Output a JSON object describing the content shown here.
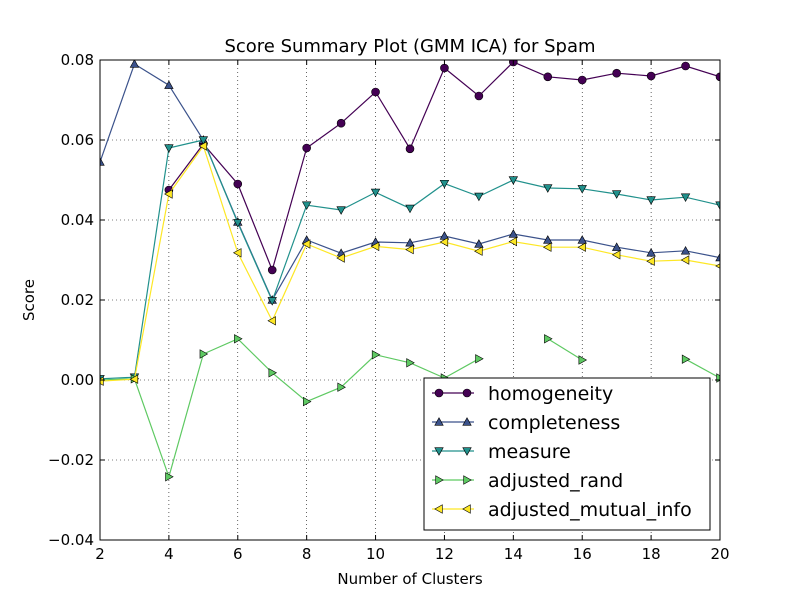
{
  "chart_data": {
    "type": "line",
    "title": "Score Summary Plot (GMM ICA) for Spam",
    "xlabel": "Number of Clusters",
    "ylabel": "Score",
    "xlim": [
      2,
      20
    ],
    "ylim": [
      -0.04,
      0.08
    ],
    "xticks": [
      "2",
      "4",
      "6",
      "8",
      "10",
      "12",
      "14",
      "16",
      "18",
      "20"
    ],
    "yticks": [
      "−0.04",
      "−0.02",
      "0.00",
      "0.02",
      "0.04",
      "0.06",
      "0.08"
    ],
    "grid": true,
    "legend_position": "lower-right",
    "x": [
      2,
      3,
      4,
      5,
      6,
      7,
      8,
      9,
      10,
      11,
      12,
      13,
      14,
      15,
      16,
      17,
      18,
      19,
      20
    ],
    "series": [
      {
        "name": "homogeneity",
        "color": "#440154",
        "marker": "circle",
        "values": [
          null,
          null,
          0.0475,
          0.059,
          0.049,
          0.0275,
          0.058,
          0.0642,
          0.072,
          0.0578,
          0.078,
          0.071,
          0.0795,
          0.0758,
          0.075,
          0.0767,
          0.076,
          0.0785,
          0.0758
        ]
      },
      {
        "name": "completeness",
        "color": "#3b528b",
        "marker": "triangle-up",
        "values": [
          0.0545,
          0.079,
          0.0737,
          0.06,
          0.0395,
          0.02,
          0.035,
          0.0317,
          0.0345,
          0.0343,
          0.036,
          0.034,
          0.0365,
          0.035,
          0.035,
          0.0332,
          0.0318,
          0.0323,
          0.0306
        ]
      },
      {
        "name": "measure",
        "color": "#21918c",
        "marker": "triangle-down",
        "values": [
          0.0003,
          0.0007,
          0.058,
          0.06,
          0.0393,
          0.0198,
          0.0437,
          0.0425,
          0.0469,
          0.0429,
          0.0491,
          0.0459,
          0.05,
          0.048,
          0.0478,
          0.0465,
          0.045,
          0.0457,
          0.0437
        ]
      },
      {
        "name": "adjusted_rand",
        "color": "#5ec962",
        "marker": "triangle-right",
        "values": [
          0.0,
          0.0003,
          -0.0242,
          0.0065,
          0.0103,
          0.0018,
          -0.0054,
          -0.0018,
          0.0063,
          0.0043,
          0.0005,
          0.0053,
          null,
          0.0103,
          0.005,
          null,
          null,
          0.0052,
          0.0005
        ]
      },
      {
        "name": "adjusted_mutual_info",
        "color": "#fde725",
        "marker": "triangle-left",
        "values": [
          -0.0003,
          0.0002,
          0.0465,
          0.0585,
          0.0318,
          0.0148,
          0.034,
          0.0305,
          0.0334,
          0.0326,
          0.0345,
          0.0322,
          0.0346,
          0.0332,
          0.0332,
          0.0313,
          0.0297,
          0.03,
          0.0285
        ]
      }
    ]
  }
}
